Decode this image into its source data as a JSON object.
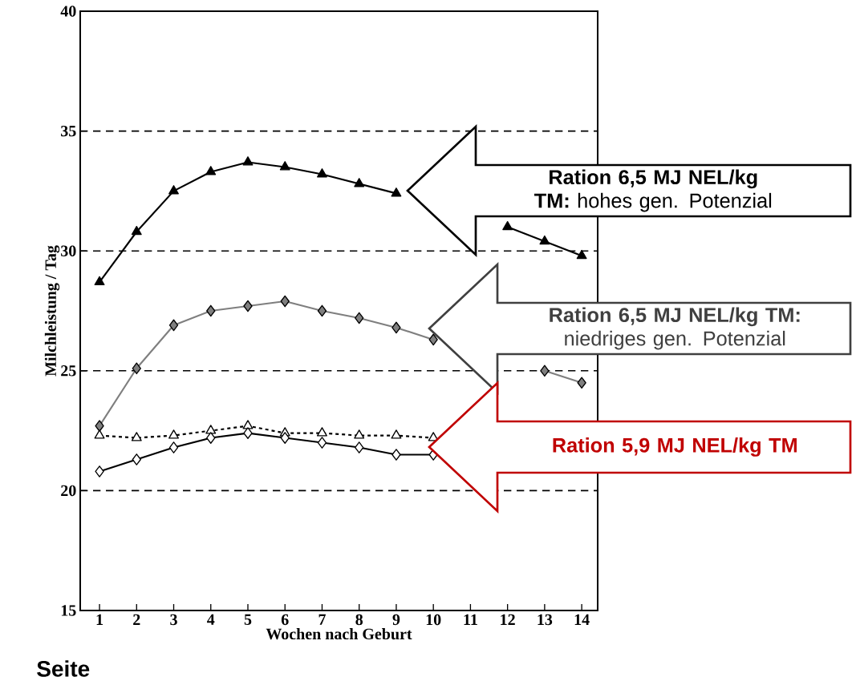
{
  "chart_data": {
    "type": "line",
    "xlabel": "Wochen nach Geburt",
    "ylabel": "Milchleistung / Tag",
    "categories": [
      "1",
      "2",
      "3",
      "4",
      "5",
      "6",
      "7",
      "8",
      "9",
      "10",
      "11",
      "12",
      "13",
      "14"
    ],
    "series": [
      {
        "color": "#000000",
        "marker": "triangle",
        "line_style": "solid",
        "values": [
          28.7,
          30.8,
          32.5,
          33.3,
          33.7,
          33.5,
          33.2,
          32.8,
          32.4,
          null,
          null,
          31.0,
          30.4,
          29.8
        ]
      },
      {
        "color": "#7f7f7f",
        "marker": "diamond",
        "line_style": "solid",
        "values": [
          22.7,
          25.1,
          26.9,
          27.5,
          27.7,
          27.9,
          27.5,
          27.2,
          26.8,
          26.3,
          null,
          null,
          25.0,
          24.5
        ]
      },
      {
        "color": "#ffffff",
        "marker": "triangle",
        "line_style": "dashed",
        "values": [
          22.3,
          22.2,
          22.3,
          22.5,
          22.7,
          22.4,
          22.4,
          22.3,
          22.3,
          22.2,
          null,
          null,
          null,
          null
        ]
      },
      {
        "color": "#ffffff",
        "marker": "diamond",
        "line_style": "solid",
        "values": [
          20.8,
          21.3,
          21.8,
          22.2,
          22.4,
          22.2,
          22.0,
          21.8,
          21.5,
          21.5,
          null,
          null,
          null,
          null
        ]
      }
    ],
    "ylim": [
      15,
      40
    ],
    "yticks": [
      15,
      20,
      25,
      30,
      35,
      40
    ],
    "grid": "y",
    "annotations": [
      "**Ration 6,5 MJ NEL/kg TM:** hohes  gen. Potenzial",
      "**Ration 6,5 MJ NEL/kg TM:** niedriges  gen. Potenzial",
      "Ration 5,9 MJ NEL/kg TM",
      "Seite"
    ]
  }
}
